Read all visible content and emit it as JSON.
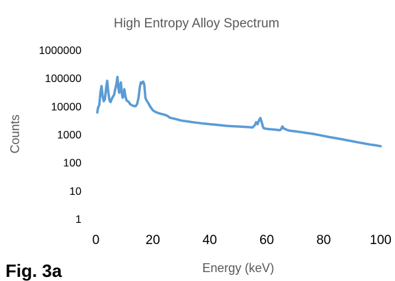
{
  "figure_label": "Fig. 3a",
  "chart_data": {
    "type": "line",
    "title": "High Entropy Alloy Spectrum",
    "xlabel": "Energy (keV)",
    "ylabel": "Counts",
    "xlim": [
      0,
      100
    ],
    "ylim": [
      1,
      1000000
    ],
    "yscale": "log",
    "xticks": [
      0,
      20,
      40,
      60,
      80,
      100
    ],
    "yticks": [
      1,
      10,
      100,
      1000,
      10000,
      100000,
      1000000
    ],
    "xtick_labels": [
      "0",
      "20",
      "40",
      "60",
      "80",
      "100"
    ],
    "ytick_labels": [
      "1",
      "10",
      "100",
      "1000",
      "10000",
      "100000",
      "1000000"
    ],
    "grid": false,
    "legend": "none",
    "series_color": "#5b9bd5",
    "series": [
      {
        "x": [
          0.5,
          0.8,
          1.2,
          1.6,
          2.0,
          2.4,
          2.8,
          3.2,
          3.6,
          4.0,
          4.4,
          4.8,
          5.2,
          5.6,
          6.0,
          6.4,
          6.8,
          7.2,
          7.6,
          7.9,
          8.2,
          8.5,
          8.8,
          9.1,
          9.4,
          9.7,
          10.0,
          10.4,
          10.8,
          11.2,
          11.6,
          12.0,
          12.5,
          13.0,
          13.5,
          14.0,
          14.5,
          15.0,
          15.4,
          15.8,
          16.2,
          16.6,
          17.0,
          17.4,
          17.8,
          18.2,
          18.6,
          19.0,
          19.5,
          20.0,
          21.0,
          22.0,
          23.0,
          24.0,
          25.0,
          26.0,
          28.0,
          30.0,
          32.0,
          34.0,
          36.0,
          38.0,
          40.0,
          42.0,
          44.0,
          46.0,
          48.0,
          50.0,
          52.0,
          54.0,
          55.0,
          55.8,
          56.3,
          56.8,
          57.3,
          57.8,
          58.3,
          58.8,
          59.5,
          60.5,
          62.0,
          63.5,
          64.5,
          65.0,
          65.5,
          66.0,
          66.5,
          67.0,
          68.0,
          70.0,
          72.0,
          74.0,
          76.0,
          78.0,
          80.0,
          82.0,
          84.0,
          86.0,
          88.0,
          90.0,
          92.0,
          94.0,
          96.0,
          98.0,
          100.0
        ],
        "y": [
          6000,
          9000,
          11000,
          30000,
          52000,
          22000,
          15000,
          18000,
          45000,
          80000,
          30000,
          16000,
          14000,
          18000,
          22000,
          25000,
          40000,
          60000,
          110000,
          45000,
          30000,
          55000,
          70000,
          30000,
          20000,
          22000,
          40000,
          22000,
          16000,
          15000,
          14000,
          12000,
          11000,
          10500,
          10000,
          10000,
          12000,
          20000,
          45000,
          70000,
          65000,
          75000,
          60000,
          20000,
          16000,
          14000,
          12000,
          10000,
          8500,
          7200,
          6200,
          5700,
          5300,
          5000,
          4600,
          3900,
          3500,
          3100,
          2900,
          2700,
          2550,
          2400,
          2300,
          2200,
          2100,
          2000,
          1950,
          1900,
          1850,
          1800,
          1750,
          2100,
          2700,
          2300,
          3200,
          3800,
          2600,
          1700,
          1600,
          1550,
          1500,
          1450,
          1400,
          1500,
          1900,
          1600,
          1550,
          1450,
          1350,
          1280,
          1200,
          1120,
          1050,
          960,
          880,
          800,
          740,
          680,
          620,
          570,
          520,
          480,
          440,
          410,
          380
        ]
      }
    ]
  }
}
